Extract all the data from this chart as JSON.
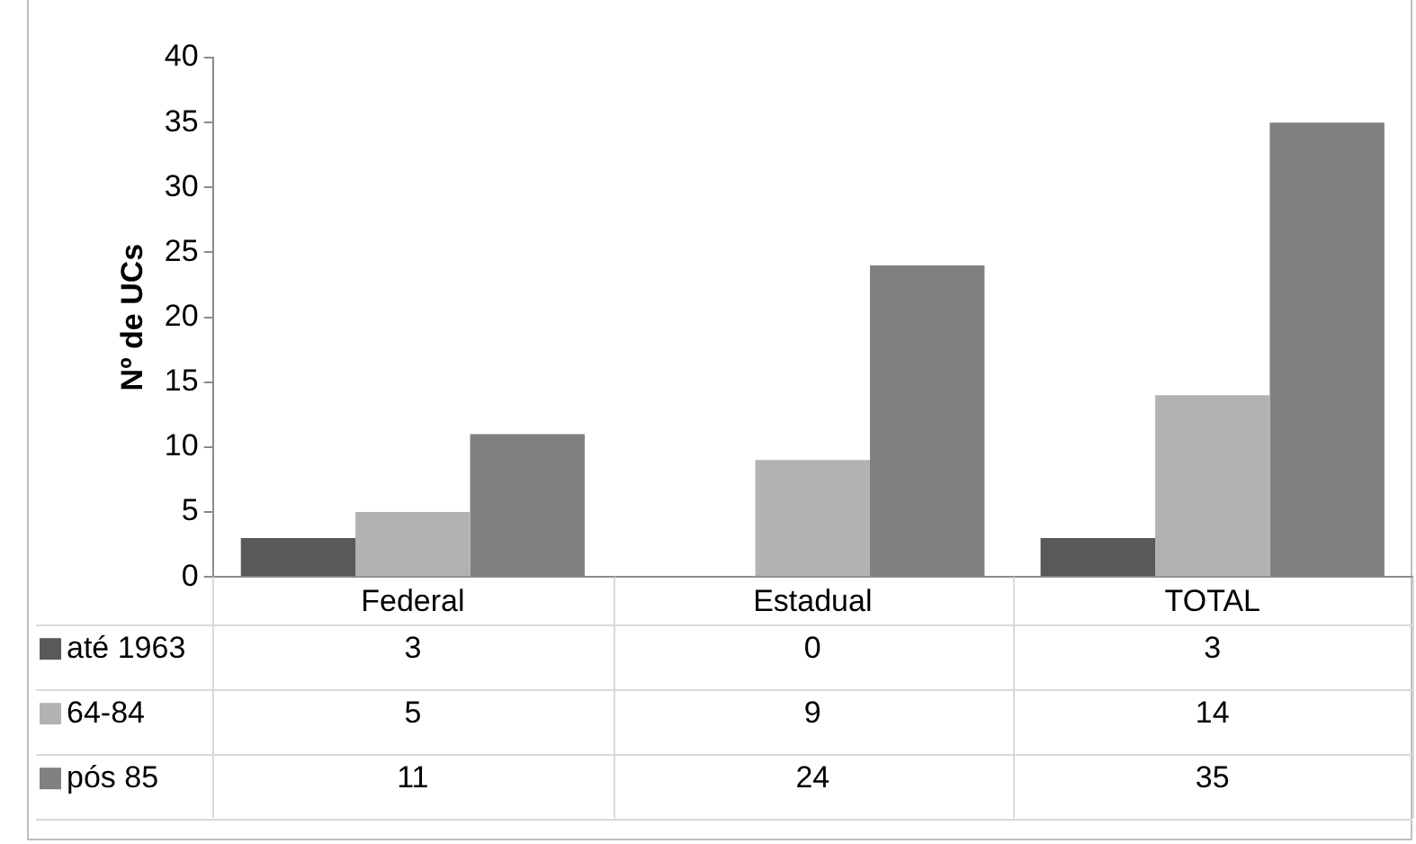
{
  "chart_data": {
    "type": "bar",
    "ylabel": "Nº de UCs",
    "categories": [
      "Federal",
      "Estadual",
      "TOTAL"
    ],
    "series": [
      {
        "name": "até 1963",
        "color": "#595959",
        "values": [
          3,
          0,
          3
        ]
      },
      {
        "name": "64-84",
        "color": "#b2b2b2",
        "values": [
          5,
          9,
          14
        ]
      },
      {
        "name": "pós 85",
        "color": "#808080",
        "values": [
          11,
          24,
          35
        ]
      }
    ],
    "ylim": [
      0,
      40
    ],
    "yticks": [
      0,
      5,
      10,
      15,
      20,
      25,
      30,
      35,
      40
    ],
    "grid": false,
    "legend": "bottom",
    "data_labels": true
  }
}
